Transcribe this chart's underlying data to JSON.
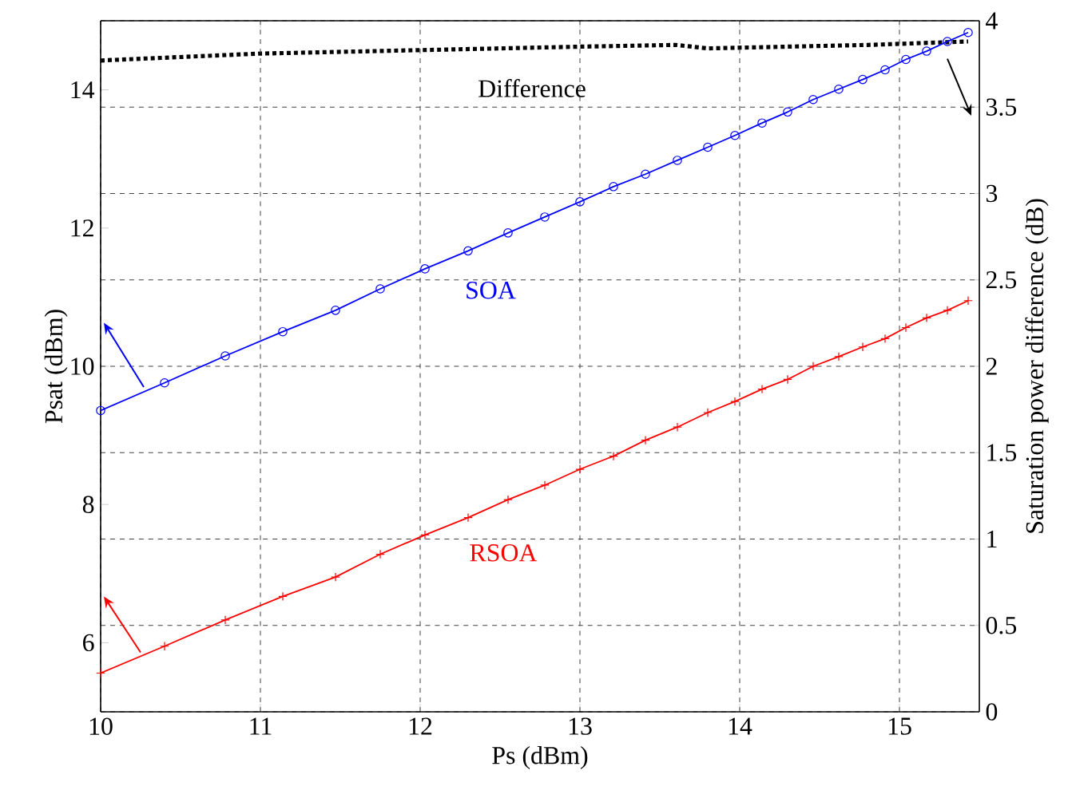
{
  "chart_data": {
    "type": "line",
    "xlabel": "Ps  (dBm)",
    "ylabel": "Psat (dBm)",
    "y2label": "Saturation power difference (dB)",
    "x": [
      10,
      10.4,
      10.78,
      11.14,
      11.47,
      11.75,
      12.03,
      12.3,
      12.55,
      12.78,
      13.0,
      13.21,
      13.41,
      13.61,
      13.8,
      13.97,
      14.14,
      14.3,
      14.46,
      14.62,
      14.77,
      14.91,
      15.04,
      15.17,
      15.3,
      15.43
    ],
    "series": [
      {
        "name": "SOA",
        "color": "#0000ff",
        "marker": "circle",
        "line_style": "solid",
        "values": [
          9.36,
          9.76,
          10.15,
          10.5,
          10.81,
          11.12,
          11.41,
          11.67,
          11.93,
          12.16,
          12.38,
          12.6,
          12.78,
          12.98,
          13.17,
          13.34,
          13.52,
          13.68,
          13.86,
          14.01,
          14.15,
          14.29,
          14.44,
          14.56,
          14.7,
          14.83
        ]
      },
      {
        "name": "RSOA",
        "color": "#ff0000",
        "marker": "cross",
        "line_style": "solid",
        "values": [
          5.56,
          5.95,
          6.33,
          6.67,
          6.95,
          7.28,
          7.56,
          7.81,
          8.07,
          8.28,
          8.51,
          8.7,
          8.93,
          9.12,
          9.33,
          9.49,
          9.67,
          9.81,
          10.0,
          10.14,
          10.28,
          10.4,
          10.56,
          10.7,
          10.81,
          10.95
        ]
      },
      {
        "name": "Difference",
        "color": "#000000",
        "marker": "none",
        "line_style": "dotted",
        "axis": "y2",
        "x": [
          10,
          11,
          12,
          13,
          13.6,
          13.8,
          14.8,
          15.43
        ],
        "values": [
          3.77,
          3.81,
          3.83,
          3.85,
          3.86,
          3.84,
          3.86,
          3.88
        ]
      }
    ],
    "xlim": [
      10,
      15.5
    ],
    "xticks": [
      10,
      11,
      12,
      13,
      14,
      15
    ],
    "ylim": [
      5,
      15
    ],
    "yticks": [
      6,
      8,
      10,
      12,
      14
    ],
    "y2lim": [
      0,
      4
    ],
    "y2ticks": [
      0,
      0.5,
      1,
      1.5,
      2,
      2.5,
      3,
      3.5,
      4
    ],
    "grid": true,
    "legend": false
  }
}
